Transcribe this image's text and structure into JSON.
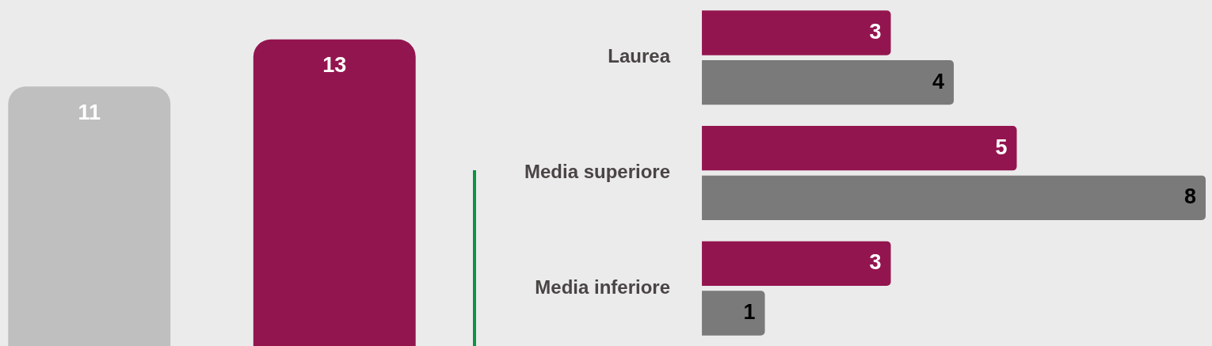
{
  "chart_data": [
    {
      "type": "bar",
      "categories": [
        null,
        null
      ],
      "values": [
        11,
        13
      ],
      "colors": [
        "#bfbfbf",
        "#93154f"
      ],
      "data_labels": true,
      "tick_labels": false
    },
    {
      "type": "bar",
      "orientation": "horizontal",
      "categories": [
        "Laurea",
        "Media superiore",
        "Media inferiore"
      ],
      "series": [
        {
          "color": "#93154f",
          "values": [
            3,
            5,
            3
          ]
        },
        {
          "color": "#7a7a7a",
          "values": [
            4,
            8,
            1
          ]
        }
      ],
      "data_labels": true,
      "tick_labels": "y"
    }
  ]
}
